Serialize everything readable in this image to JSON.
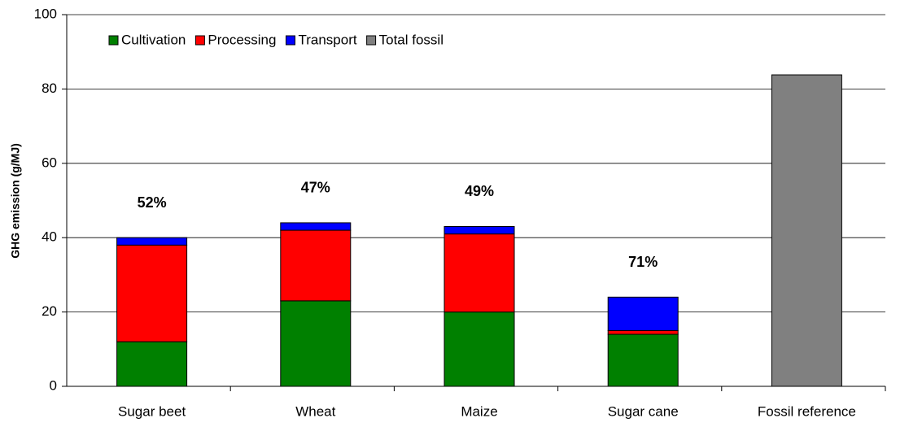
{
  "chart_data": {
    "type": "stacked_bar",
    "ylabel": "GHG emission (g/MJ)",
    "categories": [
      "Sugar beet",
      "Wheat",
      "Maize",
      "Sugar cane",
      "Fossil reference"
    ],
    "series": [
      {
        "name": "Cultivation",
        "color": "#008000",
        "values": [
          12,
          23,
          20,
          14,
          null
        ]
      },
      {
        "name": "Processing",
        "color": "#ff0000",
        "values": [
          26,
          19,
          21,
          1,
          null
        ]
      },
      {
        "name": "Transport",
        "color": "#0000ff",
        "values": [
          2,
          2,
          2,
          9,
          null
        ]
      },
      {
        "name": "Total fossil",
        "color": "#808080",
        "values": [
          null,
          null,
          null,
          null,
          83.8
        ]
      }
    ],
    "annotations": [
      "52%",
      "47%",
      "49%",
      "71%"
    ],
    "ylim": [
      0,
      100
    ],
    "yticks": [
      0,
      20,
      40,
      60,
      80,
      100
    ],
    "grid": true,
    "legend": "top-left"
  }
}
